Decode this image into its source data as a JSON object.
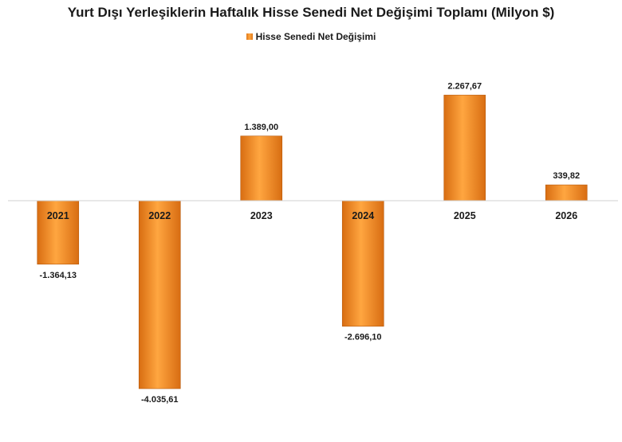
{
  "chart_data": {
    "type": "bar",
    "title": "Yurt Dışı Yerleşiklerin Haftalık Hisse Senedi Net Değişimi Toplamı (Milyon $)",
    "categories": [
      "2021",
      "2022",
      "2023",
      "2024",
      "2025",
      "2026"
    ],
    "series": [
      {
        "name": "Hisse Senedi Net Değişimi",
        "values": [
          -1364.13,
          -4035.61,
          1389.0,
          -2696.1,
          2267.67,
          339.82
        ],
        "labels": [
          "-1.364,13",
          "-4.035,61",
          "1.389,00",
          "-2.696,10",
          "2.267,67",
          "339,82"
        ]
      }
    ],
    "ylim": [
      -4500,
      2600
    ],
    "grid": false,
    "legend_position": "top-center",
    "colors": {
      "bar_light": "#ffa640",
      "bar_dark": "#d86d12",
      "bar_edge": "#b85a0c",
      "axis": "#d0d0d0"
    }
  }
}
